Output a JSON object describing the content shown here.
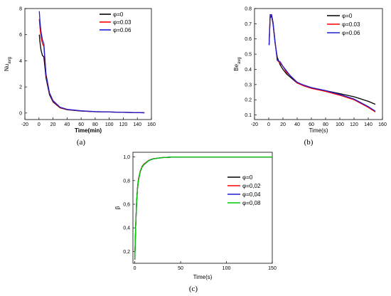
{
  "chart_data": [
    {
      "type": "line",
      "caption": "(a)",
      "xlabel": "Time(min)",
      "ylabel": "Nu",
      "ylabel_sub": "avg",
      "xlim": [
        -20,
        160
      ],
      "ylim": [
        -0.5,
        8
      ],
      "xticks": [
        -20,
        0,
        20,
        40,
        60,
        80,
        100,
        120,
        140,
        160
      ],
      "yticks": [
        0,
        2,
        4,
        6,
        8
      ],
      "legend_position": "top-right",
      "series": [
        {
          "name": "φ=0",
          "color": "#000000",
          "x": [
            0.5,
            1.5,
            3,
            5,
            7,
            10,
            15,
            20,
            30,
            40,
            60,
            80,
            100,
            120,
            150
          ],
          "y": [
            6.0,
            5.4,
            4.8,
            4.4,
            4.3,
            2.7,
            1.4,
            0.85,
            0.4,
            0.25,
            0.15,
            0.1,
            0.08,
            0.05,
            0.02
          ]
        },
        {
          "name": "φ=0.03",
          "color": "#ff0000",
          "x": [
            0.5,
            1.5,
            3,
            5,
            7,
            10,
            15,
            20,
            30,
            40,
            60,
            80,
            100,
            120,
            150
          ],
          "y": [
            7.2,
            6.5,
            5.8,
            5.3,
            5.1,
            2.9,
            1.5,
            0.9,
            0.42,
            0.26,
            0.16,
            0.1,
            0.08,
            0.05,
            0.02
          ]
        },
        {
          "name": "φ=0.06",
          "color": "#1f1fd0",
          "x": [
            0.5,
            1.5,
            3,
            5,
            7,
            10,
            15,
            20,
            30,
            40,
            60,
            80,
            100,
            120,
            150
          ],
          "y": [
            7.8,
            7.0,
            6.2,
            5.6,
            5.3,
            3.0,
            1.55,
            0.95,
            0.45,
            0.28,
            0.17,
            0.11,
            0.08,
            0.05,
            0.02
          ]
        }
      ]
    },
    {
      "type": "line",
      "caption": "(b)",
      "xlabel": "Time(s)",
      "ylabel": "Be",
      "ylabel_sub": "avg",
      "xlim": [
        -20,
        160
      ],
      "ylim": [
        0.07,
        0.8
      ],
      "xticks": [
        -20,
        0,
        20,
        40,
        60,
        80,
        100,
        120,
        140,
        160
      ],
      "yticks": [
        0.1,
        0.2,
        0.3,
        0.4,
        0.5,
        0.6,
        0.7,
        0.8
      ],
      "legend_position": "top-right",
      "series": [
        {
          "name": "φ=0",
          "color": "#000000",
          "x": [
            0.5,
            2,
            4,
            6,
            9,
            12,
            16,
            20,
            25,
            30,
            40,
            50,
            60,
            80,
            100,
            120,
            140,
            150
          ],
          "y": [
            0.56,
            0.74,
            0.75,
            0.7,
            0.57,
            0.48,
            0.43,
            0.4,
            0.37,
            0.35,
            0.31,
            0.295,
            0.28,
            0.26,
            0.24,
            0.22,
            0.19,
            0.17
          ]
        },
        {
          "name": "φ=0.03",
          "color": "#ff0000",
          "x": [
            0.5,
            2,
            4,
            6,
            9,
            12,
            16,
            20,
            25,
            30,
            40,
            50,
            60,
            80,
            100,
            120,
            140,
            150
          ],
          "y": [
            0.56,
            0.75,
            0.76,
            0.71,
            0.58,
            0.46,
            0.44,
            0.42,
            0.38,
            0.36,
            0.31,
            0.29,
            0.275,
            0.255,
            0.23,
            0.2,
            0.15,
            0.12
          ]
        },
        {
          "name": "φ=0.06",
          "color": "#1f1fd0",
          "x": [
            0.5,
            2,
            4,
            6,
            9,
            12,
            16,
            20,
            25,
            30,
            40,
            50,
            60,
            80,
            100,
            120,
            140,
            150
          ],
          "y": [
            0.56,
            0.76,
            0.76,
            0.71,
            0.58,
            0.46,
            0.45,
            0.42,
            0.39,
            0.36,
            0.315,
            0.295,
            0.28,
            0.26,
            0.235,
            0.205,
            0.155,
            0.125
          ]
        }
      ]
    },
    {
      "type": "line",
      "caption": "(c)",
      "xlabel": "Time(s)",
      "ylabel": "β",
      "ylabel_sub": "",
      "xlim": [
        -2,
        150
      ],
      "ylim": [
        0.1,
        1.04
      ],
      "xticks": [
        0,
        50,
        100,
        150
      ],
      "yticks": [
        "0,2",
        "0,4",
        "0,6",
        "0,8",
        "1,0"
      ],
      "ytick_values": [
        0.2,
        0.4,
        0.6,
        0.8,
        1.0
      ],
      "legend_position": "center-right",
      "series": [
        {
          "name": "φ=0",
          "color": "#000000",
          "x": [
            0,
            1,
            2,
            3,
            4,
            6,
            8,
            10,
            15,
            20,
            30,
            40,
            50,
            75,
            100,
            150
          ],
          "y": [
            0.13,
            0.42,
            0.62,
            0.74,
            0.81,
            0.88,
            0.92,
            0.94,
            0.97,
            0.985,
            0.995,
            0.999,
            1.0,
            1.0,
            1.0,
            1.0
          ]
        },
        {
          "name": "φ=0,02",
          "color": "#ff0000",
          "x": [
            0,
            1,
            2,
            3,
            4,
            6,
            8,
            10,
            15,
            20,
            30,
            40,
            50,
            75,
            100,
            150
          ],
          "y": [
            0.13,
            0.42,
            0.62,
            0.74,
            0.81,
            0.88,
            0.92,
            0.94,
            0.97,
            0.985,
            0.995,
            0.999,
            1.0,
            1.0,
            1.0,
            1.0
          ]
        },
        {
          "name": "φ=0,04",
          "color": "#1f1fd0",
          "x": [
            0,
            1,
            2,
            3,
            4,
            6,
            8,
            10,
            15,
            20,
            30,
            40,
            50,
            75,
            100,
            150
          ],
          "y": [
            0.13,
            0.41,
            0.61,
            0.73,
            0.8,
            0.875,
            0.915,
            0.935,
            0.968,
            0.984,
            0.995,
            0.999,
            1.0,
            1.0,
            1.0,
            1.0
          ]
        },
        {
          "name": "φ=0,08",
          "color": "#00cc00",
          "x": [
            0,
            1,
            2,
            3,
            4,
            6,
            8,
            10,
            15,
            20,
            30,
            40,
            50,
            75,
            100,
            150
          ],
          "y": [
            0.13,
            0.41,
            0.61,
            0.73,
            0.8,
            0.875,
            0.915,
            0.935,
            0.968,
            0.984,
            0.995,
            0.999,
            1.0,
            1.0,
            1.0,
            1.0
          ]
        }
      ]
    }
  ]
}
